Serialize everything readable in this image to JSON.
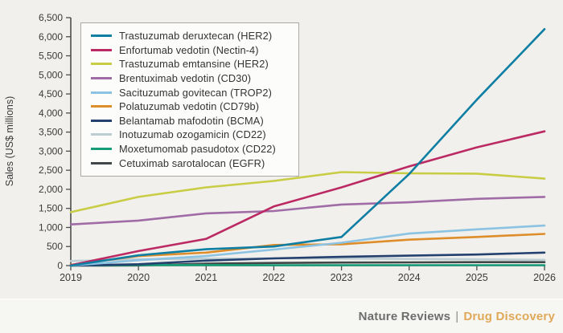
{
  "figure": {
    "background": "#f1f0ed",
    "footer_background": "#f6f6f3",
    "axis_color": "#4d4d4d",
    "text_color": "#3a3a3a"
  },
  "footer": {
    "journal": "Nature Reviews",
    "separator": "|",
    "section": "Drug Discovery",
    "journal_color": "#6e6e6e",
    "section_color": "#e0a859"
  },
  "chart_data": {
    "type": "line",
    "title": "",
    "xlabel": "",
    "ylabel": "Sales (US$ millions)",
    "x": [
      2019,
      2020,
      2021,
      2022,
      2023,
      2024,
      2025,
      2026
    ],
    "x_tick_labels": [
      "2019",
      "2020",
      "2021",
      "2022",
      "2023",
      "2024",
      "2025",
      "2026"
    ],
    "ylim": [
      0,
      6500
    ],
    "y_tick_step": 500,
    "y_tick_values": [
      0,
      500,
      1000,
      1500,
      2000,
      2500,
      3000,
      3500,
      4000,
      4500,
      5000,
      5500,
      6000,
      6500
    ],
    "y_tick_labels": [
      "0",
      "500",
      "1,000",
      "1,500",
      "2,000",
      "2,500",
      "3,000",
      "3,500",
      "4,000",
      "4,500",
      "5,000",
      "5,500",
      "6,000",
      "6,500"
    ],
    "grid": false,
    "legend_position": "upper-left",
    "line_width": 2.6,
    "series": [
      {
        "name": "Trastuzumab deruxtecan (HER2)",
        "color": "#0e7ea3",
        "values": [
          0,
          270,
          430,
          500,
          750,
          2400,
          4350,
          6200
        ]
      },
      {
        "name": "Enfortumab vedotin (Nectin-4)",
        "color": "#bb2a63",
        "values": [
          10,
          380,
          700,
          1550,
          2050,
          2600,
          3100,
          3520
        ]
      },
      {
        "name": "Trastuzumab emtansine (HER2)",
        "color": "#c9cd45",
        "values": [
          1400,
          1800,
          2050,
          2220,
          2450,
          2420,
          2410,
          2280
        ]
      },
      {
        "name": "Brentuximab vedotin (CD30)",
        "color": "#a06ca6",
        "values": [
          1080,
          1180,
          1370,
          1430,
          1600,
          1660,
          1750,
          1800
        ]
      },
      {
        "name": "Sacituzumab govitecan (TROP2)",
        "color": "#8cc3e2",
        "values": [
          0,
          140,
          250,
          420,
          600,
          840,
          950,
          1050
        ]
      },
      {
        "name": "Polatuzumab vedotin (CD79b)",
        "color": "#dd8d2a",
        "values": [
          20,
          250,
          340,
          540,
          560,
          680,
          750,
          830
        ]
      },
      {
        "name": "Belantamab mafodotin (BCMA)",
        "color": "#23406f",
        "values": [
          0,
          35,
          130,
          190,
          230,
          260,
          290,
          340
        ]
      },
      {
        "name": "Inotuzumab ozogamicin (CD22)",
        "color": "#bccdd3",
        "values": [
          120,
          165,
          180,
          190,
          185,
          175,
          165,
          150
        ]
      },
      {
        "name": "Moxetumomab pasudotox (CD22)",
        "color": "#169c76",
        "values": [
          5,
          15,
          15,
          10,
          10,
          10,
          10,
          10
        ]
      },
      {
        "name": "Cetuximab sarotalocan (EGFR)",
        "color": "#3f4747",
        "values": [
          0,
          5,
          50,
          70,
          80,
          85,
          90,
          90
        ]
      }
    ]
  }
}
